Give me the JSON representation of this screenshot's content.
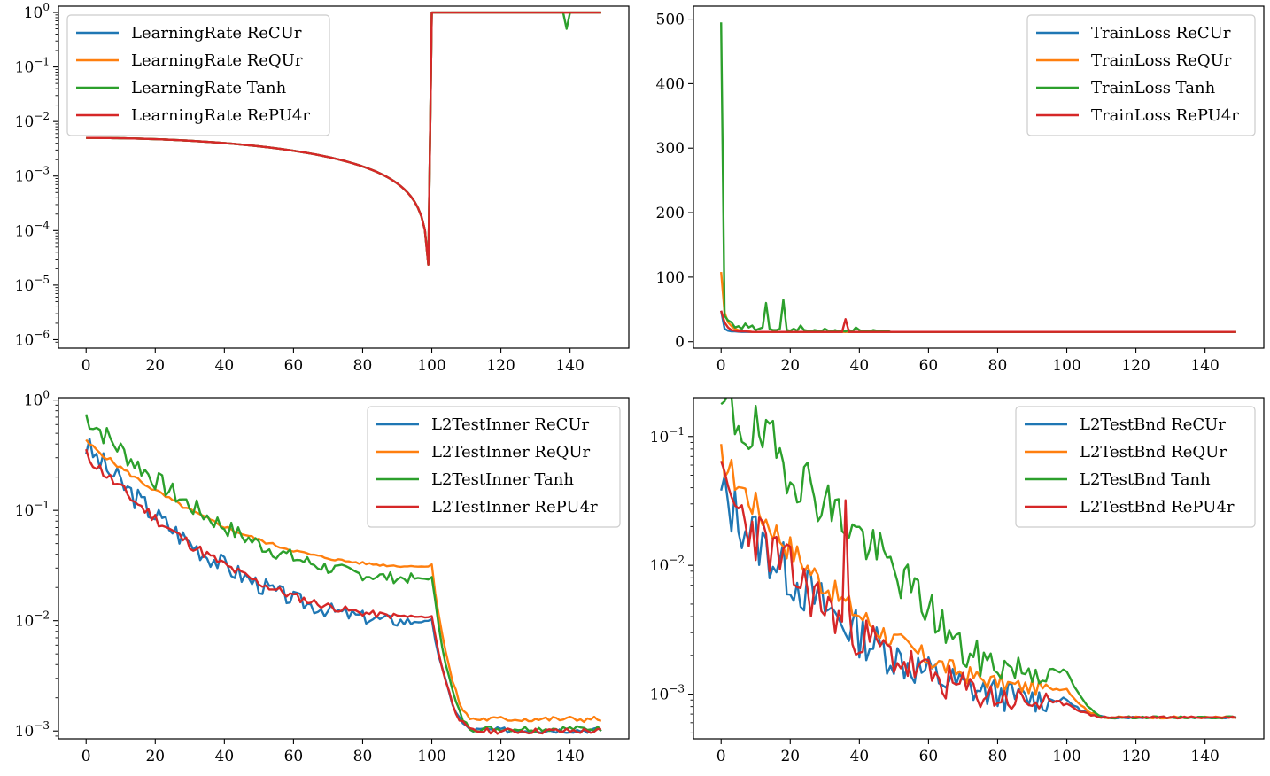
{
  "colors": {
    "ReCUr": "#1f77b4",
    "ReQUr": "#ff7f0e",
    "Tanh": "#2ca02c",
    "RePU4r": "#d62728"
  },
  "chart_data": [
    {
      "id": "lr",
      "type": "line",
      "yscale": "log",
      "xlim": [
        -8,
        157
      ],
      "ylim": [
        7e-07,
        1.3
      ],
      "xticks": [
        0,
        20,
        40,
        60,
        80,
        100,
        120,
        140
      ],
      "yticks": [
        {
          "v": 1,
          "base": "10",
          "exp": "0"
        },
        {
          "v": 0.1,
          "base": "10",
          "exp": "−1"
        },
        {
          "v": 0.01,
          "base": "10",
          "exp": "−2"
        },
        {
          "v": 0.001,
          "base": "10",
          "exp": "−3"
        },
        {
          "v": 0.0001,
          "base": "10",
          "exp": "−4"
        },
        {
          "v": 1e-05,
          "base": "10",
          "exp": "−5"
        },
        {
          "v": 1e-06,
          "base": "10",
          "exp": "−6"
        }
      ],
      "legend_position": "top-left",
      "series": [
        {
          "key": "ReCUr",
          "name": "LearningRate ReCUr",
          "gen": "lr_base",
          "tanh_dip": false
        },
        {
          "key": "ReQUr",
          "name": "LearningRate ReQUr",
          "gen": "lr_base",
          "tanh_dip": false
        },
        {
          "key": "Tanh",
          "name": "LearningRate Tanh",
          "gen": "lr_base",
          "tanh_dip": true
        },
        {
          "key": "RePU4r",
          "name": "LearningRate RePU4r",
          "gen": "lr_base",
          "tanh_dip": false
        }
      ]
    },
    {
      "id": "loss",
      "type": "line",
      "yscale": "linear",
      "xlim": [
        -8,
        157
      ],
      "ylim": [
        -10,
        520
      ],
      "xticks": [
        0,
        20,
        40,
        60,
        80,
        100,
        120,
        140
      ],
      "yticks": [
        {
          "v": 0,
          "label": "0"
        },
        {
          "v": 100,
          "label": "100"
        },
        {
          "v": 200,
          "label": "200"
        },
        {
          "v": 300,
          "label": "300"
        },
        {
          "v": 400,
          "label": "400"
        },
        {
          "v": 500,
          "label": "500"
        }
      ],
      "legend_position": "top-right",
      "series": [
        {
          "key": "ReCUr",
          "name": "TrainLoss ReCUr",
          "head": [
            48,
            20,
            17,
            16,
            16,
            15.5
          ],
          "tail": 15.2
        },
        {
          "key": "ReQUr",
          "name": "TrainLoss ReQUr",
          "head": [
            108,
            45,
            30,
            24,
            20,
            18,
            17,
            16.5,
            16
          ],
          "tail": 15.2
        },
        {
          "key": "Tanh",
          "name": "TrainLoss Tanh",
          "head": [
            495,
            40,
            33,
            30,
            22,
            24,
            20,
            28,
            22,
            25,
            18,
            20,
            22,
            60,
            20,
            18,
            18,
            20,
            65,
            18,
            17,
            20,
            17,
            25,
            18,
            17,
            16,
            18,
            17,
            16,
            20,
            17,
            16,
            18,
            16,
            17,
            16,
            18,
            16,
            22,
            18,
            16,
            17,
            16,
            18,
            17,
            16,
            16,
            17
          ],
          "tail": 15.2
        },
        {
          "key": "RePU4r",
          "name": "TrainLoss RePU4r",
          "head": [
            48,
            30,
            22,
            18,
            17,
            16,
            16,
            16,
            15.5
          ],
          "tail": 15.2,
          "spike": {
            "x": 36,
            "v": 35
          }
        }
      ]
    },
    {
      "id": "inner",
      "type": "line",
      "yscale": "log",
      "xlim": [
        -8,
        157
      ],
      "ylim": [
        0.00085,
        1.05
      ],
      "xticks": [
        0,
        20,
        40,
        60,
        80,
        100,
        120,
        140
      ],
      "yticks": [
        {
          "v": 1,
          "base": "10",
          "exp": "0"
        },
        {
          "v": 0.1,
          "base": "10",
          "exp": "−1"
        },
        {
          "v": 0.01,
          "base": "10",
          "exp": "−2"
        },
        {
          "v": 0.001,
          "base": "10",
          "exp": "−3"
        }
      ],
      "legend_position": "top-right",
      "series": [
        {
          "key": "ReCUr",
          "name": "L2TestInner ReCUr",
          "start": 0.38,
          "plateau": 0.0098,
          "end": 0.00102,
          "noise": 0.28,
          "seed": 3
        },
        {
          "key": "ReQUr",
          "name": "L2TestInner ReQUr",
          "start": 0.42,
          "plateau": 0.031,
          "end": 0.00128,
          "noise": 0.05,
          "seed": 5
        },
        {
          "key": "Tanh",
          "name": "L2TestInner Tanh",
          "start": 0.72,
          "plateau": 0.024,
          "end": 0.00105,
          "noise": 0.25,
          "seed": 7
        },
        {
          "key": "RePU4r",
          "name": "L2TestInner RePU4r",
          "start": 0.32,
          "plateau": 0.0108,
          "end": 0.001,
          "noise": 0.14,
          "seed": 11
        }
      ]
    },
    {
      "id": "bnd",
      "type": "line",
      "yscale": "log",
      "xlim": [
        -8,
        157
      ],
      "ylim": [
        0.00045,
        0.2
      ],
      "xticks": [
        0,
        20,
        40,
        60,
        80,
        100,
        120,
        140
      ],
      "yticks": [
        {
          "v": 0.1,
          "base": "10",
          "exp": "−1"
        },
        {
          "v": 0.01,
          "base": "10",
          "exp": "−2"
        },
        {
          "v": 0.001,
          "base": "10",
          "exp": "−3"
        }
      ],
      "legend_position": "top-right",
      "series": [
        {
          "key": "ReCUr",
          "name": "L2TestBnd ReCUr",
          "start": 0.035,
          "plateau": 0.0009,
          "end": 0.00066,
          "noise": 0.55,
          "seed": 13
        },
        {
          "key": "ReQUr",
          "name": "L2TestBnd ReQUr",
          "start": 0.068,
          "plateau": 0.0011,
          "end": 0.00066,
          "noise": 0.3,
          "seed": 17
        },
        {
          "key": "Tanh",
          "name": "L2TestBnd Tanh",
          "start": 0.16,
          "plateau": 0.0015,
          "end": 0.00066,
          "noise": 0.6,
          "seed": 19,
          "lift": 2.6
        },
        {
          "key": "RePU4r",
          "name": "L2TestBnd RePU4r",
          "start": 0.04,
          "plateau": 0.00085,
          "end": 0.00066,
          "noise": 0.55,
          "seed": 23,
          "spike": {
            "x": 36,
            "v": 0.032
          }
        }
      ]
    }
  ]
}
